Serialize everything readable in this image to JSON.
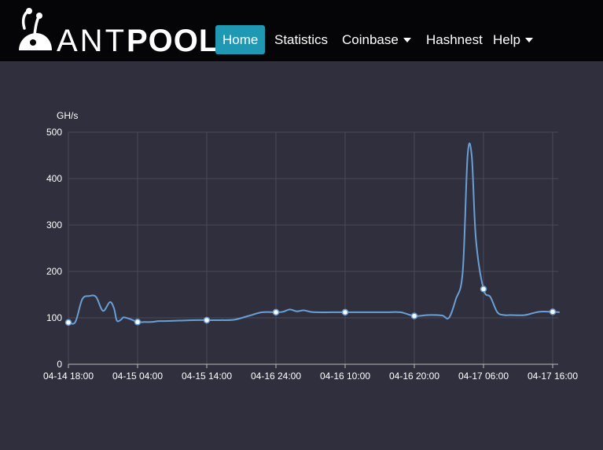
{
  "brand": {
    "name_part1": "ANT",
    "name_part2": "POOL"
  },
  "nav": {
    "home": "Home",
    "statistics": "Statistics",
    "coinbase": "Coinbase",
    "hashnest": "Hashnest",
    "help": "Help"
  },
  "colors": {
    "accent": "#1e98b3",
    "line": "#6a9fd6",
    "background": "#2f2f3d"
  },
  "chart_data": {
    "type": "line",
    "title": "",
    "xlabel": "",
    "ylabel": "GH/s",
    "ylim": [
      0,
      500
    ],
    "yticks": [
      0,
      100,
      200,
      300,
      400,
      500
    ],
    "grid": true,
    "legend": "none",
    "x_tick_labels": [
      "04-14 18:00",
      "04-15 04:00",
      "04-15 14:00",
      "04-16 24:00",
      "04-16 10:00",
      "04-16 20:00",
      "04-17 06:00",
      "04-17 16:00"
    ],
    "x_hours_start_tick_index": 0,
    "series": [
      {
        "name": "",
        "marker_hours": [
          0,
          10,
          20,
          30,
          40,
          50,
          60,
          70
        ],
        "hours": [
          0,
          1,
          2,
          3,
          4,
          5,
          6,
          6.6,
          7,
          7.6,
          8,
          9,
          10,
          11,
          12,
          13,
          14,
          16,
          18,
          20,
          22,
          24,
          26,
          28,
          30,
          31,
          32,
          33,
          34,
          35,
          36,
          38,
          40,
          42,
          44,
          46,
          48,
          50,
          52,
          54,
          55,
          56,
          57,
          57.7,
          58.3,
          58.9,
          60,
          61,
          62,
          63,
          64,
          66,
          68,
          70,
          71
        ],
        "values": [
          90,
          91,
          140,
          147,
          145,
          115,
          134,
          120,
          94,
          96,
          101,
          97,
          91,
          91,
          91,
          93,
          93,
          94,
          95,
          95,
          95,
          96,
          104,
          112,
          112,
          113,
          118,
          114,
          116,
          113,
          112,
          112,
          112,
          112,
          112,
          112,
          112,
          104,
          106,
          105,
          100,
          140,
          200,
          449,
          449,
          270,
          162,
          145,
          112,
          106,
          106,
          106,
          113,
          113,
          112
        ]
      }
    ]
  }
}
